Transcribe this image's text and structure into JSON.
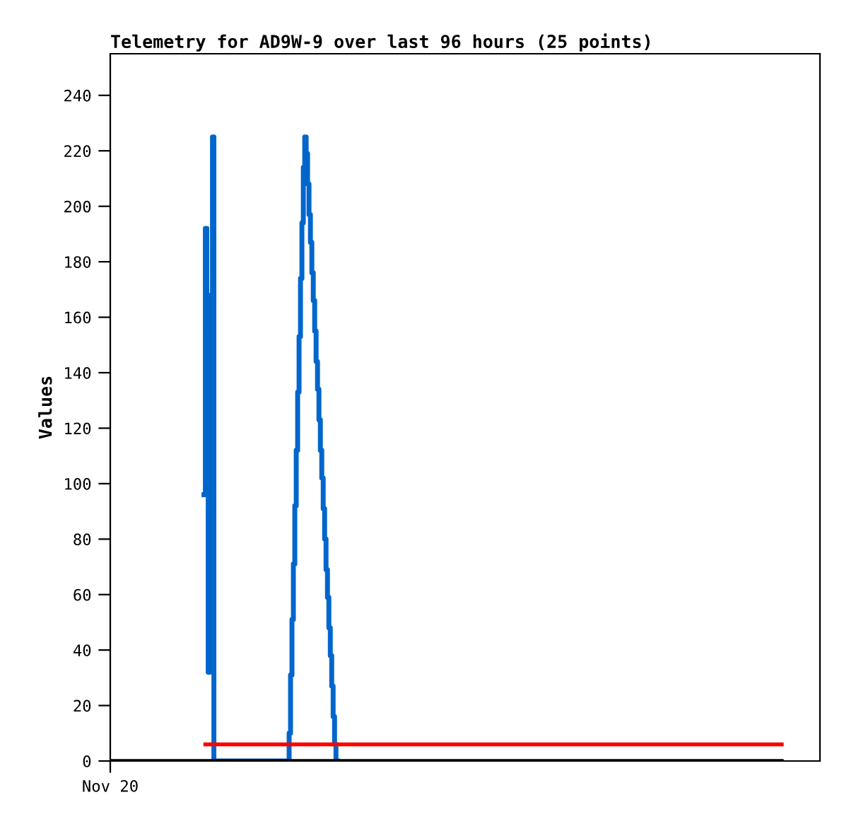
{
  "chart_data": {
    "type": "step",
    "title": "Telemetry for AD9W-9 over last 96 hours (25 points)",
    "ylabel": "Values",
    "categories": [
      "Nov 20",
      null,
      null,
      null,
      null,
      null,
      null,
      null,
      null,
      null,
      null,
      null,
      null,
      null,
      null,
      null,
      null,
      null,
      null,
      null,
      null,
      null,
      null,
      null,
      null,
      null,
      null,
      null,
      null,
      null,
      null,
      null,
      null,
      null,
      null,
      null,
      null,
      null,
      null,
      null,
      null,
      null,
      null,
      null,
      null,
      null,
      null,
      null,
      null,
      null,
      null,
      null,
      null,
      null,
      null,
      null,
      null,
      null,
      null,
      null,
      null,
      null,
      null,
      null,
      null,
      null,
      null,
      null,
      null,
      null,
      null,
      null,
      null,
      null,
      null,
      null,
      null,
      null,
      null,
      null,
      null,
      null,
      null,
      null,
      null,
      null,
      null,
      null,
      null,
      null,
      null,
      null,
      null,
      null,
      null,
      null,
      null,
      null,
      null,
      null,
      null,
      null,
      null,
      null,
      null,
      null,
      null,
      null,
      null,
      null,
      null,
      null,
      null,
      null,
      null,
      null,
      null,
      null,
      null,
      null,
      null,
      null,
      null,
      null,
      null,
      null,
      null,
      null,
      null,
      null,
      null,
      null,
      null,
      null,
      null,
      null,
      null,
      null,
      null,
      null,
      null,
      null,
      null,
      null,
      null,
      null,
      null,
      null,
      null,
      null,
      null,
      null,
      null,
      null,
      null,
      null,
      null,
      null,
      null,
      null,
      null,
      null,
      null,
      null,
      null,
      null,
      null,
      null,
      null,
      null,
      null,
      null,
      null,
      null,
      null,
      null,
      null,
      null,
      null,
      null,
      null,
      null,
      null,
      null,
      null,
      null,
      null,
      null,
      null,
      null,
      null,
      null,
      null,
      null,
      null,
      null,
      null,
      null,
      null,
      null,
      null,
      null,
      null,
      null,
      null,
      null,
      null,
      null,
      null,
      null,
      null,
      null,
      null,
      null,
      null,
      null,
      null,
      null,
      null,
      null,
      null,
      null,
      null,
      null,
      null,
      null,
      null,
      null,
      null,
      null,
      null,
      null,
      null,
      null,
      null,
      null,
      null,
      null,
      null,
      null,
      null,
      null,
      null,
      null,
      null,
      null,
      null,
      null,
      null,
      null,
      null,
      null,
      null,
      null,
      null,
      null,
      null,
      null,
      null,
      null,
      null,
      null,
      null,
      null,
      null,
      null,
      null,
      null,
      null,
      null,
      null,
      null,
      null,
      null,
      null,
      null,
      null,
      null,
      null,
      null,
      null,
      null,
      null,
      null,
      null,
      null,
      null,
      null,
      null,
      null,
      null,
      null,
      null,
      null,
      null,
      null,
      null,
      null,
      null,
      null,
      null,
      null,
      null,
      null,
      null,
      null,
      null,
      null,
      null,
      null,
      null,
      null,
      null,
      null,
      null,
      null,
      null,
      null,
      null,
      null,
      null,
      null,
      null,
      null,
      null,
      null,
      null,
      null,
      null,
      null,
      null,
      null,
      null,
      null,
      null,
      null,
      null,
      null,
      null,
      null,
      null,
      null,
      null,
      null,
      null,
      null,
      null,
      null,
      null,
      null,
      null,
      null,
      null,
      null,
      null,
      null,
      null,
      null,
      null,
      null,
      null,
      null,
      null,
      null,
      null,
      null,
      null,
      null,
      null,
      null,
      null,
      null,
      null,
      null,
      null,
      null,
      null,
      null,
      null,
      null,
      null,
      null,
      null,
      null,
      null,
      null,
      null,
      null,
      null,
      null,
      null,
      null,
      null,
      null,
      null,
      null,
      null,
      null,
      null,
      null,
      null,
      null,
      null,
      null,
      null,
      null,
      null,
      null,
      null,
      null,
      null,
      null,
      null,
      null,
      null,
      null,
      null,
      null,
      null,
      null,
      null,
      null,
      null,
      null,
      null,
      null,
      null,
      null,
      null,
      null,
      null,
      null,
      null,
      null,
      null,
      null,
      null,
      null,
      null,
      null,
      null,
      null,
      null,
      null,
      null,
      null,
      null,
      null,
      null,
      null,
      null,
      null,
      null,
      null,
      null,
      null,
      null,
      null,
      null,
      null,
      null,
      null,
      null,
      null,
      null,
      null,
      null,
      null,
      null,
      null,
      null,
      null,
      null,
      null
    ],
    "series": [
      {
        "color": "#0066cc",
        "values": [
          null,
          null,
          null,
          null,
          null,
          null,
          null,
          null,
          null,
          null,
          null,
          null,
          null,
          null,
          null,
          null,
          null,
          null,
          null,
          null,
          null,
          null,
          null,
          null,
          null,
          null,
          null,
          null,
          null,
          null,
          null,
          null,
          null,
          null,
          null,
          null,
          null,
          null,
          null,
          null,
          null,
          null,
          null,
          null,
          null,
          null,
          null,
          null,
          null,
          null,
          null,
          null,
          null,
          null,
          null,
          null,
          null,
          null,
          null,
          null,
          null,
          null,
          null,
          null,
          null,
          null,
          96,
          192,
          160,
          32,
          96,
          168,
          225,
          0,
          0,
          0,
          0,
          0,
          0,
          0,
          0,
          0,
          0,
          0,
          0,
          0,
          0,
          0,
          0,
          0,
          0,
          0,
          0,
          0,
          0,
          0,
          0,
          0,
          0,
          0,
          0,
          0,
          0,
          0,
          0,
          0,
          0,
          0,
          0,
          0,
          0,
          0,
          0,
          0,
          0,
          0,
          0,
          0,
          0,
          0,
          0,
          0,
          0,
          0,
          0,
          0,
          10,
          31,
          51,
          71,
          92,
          112,
          133,
          153,
          174,
          194,
          214,
          225,
          219,
          208,
          197,
          187,
          176,
          166,
          155,
          144,
          134,
          123,
          112,
          102,
          91,
          80,
          69,
          59,
          48,
          38,
          27,
          16,
          6,
          0,
          null,
          null,
          null,
          null,
          null,
          null,
          null,
          null,
          null,
          null,
          null,
          null,
          null,
          null,
          null,
          null,
          null,
          null,
          null,
          null,
          null,
          null,
          null,
          null,
          null,
          null,
          null,
          null,
          null,
          null,
          null,
          null,
          null,
          null,
          null,
          null,
          null,
          null,
          null,
          null,
          null,
          null,
          null,
          null,
          null,
          null,
          null,
          null,
          null,
          null,
          null,
          null,
          null,
          null,
          null,
          null,
          null,
          null,
          null,
          null,
          null,
          null,
          null,
          null,
          null,
          null,
          null,
          null,
          null,
          null,
          null,
          null,
          null,
          null,
          null,
          null,
          null,
          null,
          null,
          null,
          null,
          null,
          null,
          null,
          null,
          null,
          null,
          null,
          null,
          null,
          null,
          null,
          null,
          null,
          null,
          null,
          null,
          null,
          null,
          null,
          null,
          null,
          null,
          null,
          null,
          null,
          null,
          null,
          null,
          null,
          null,
          null,
          null,
          null,
          null,
          null,
          null,
          null,
          null,
          null,
          null,
          null,
          null,
          null,
          null,
          null,
          null,
          null,
          null,
          null,
          null,
          null,
          null,
          null,
          null,
          null,
          null,
          null,
          null,
          null,
          null,
          null,
          null,
          null,
          null,
          null,
          null,
          null,
          null,
          null,
          null,
          null,
          null,
          null,
          null,
          null,
          null,
          null,
          null,
          null,
          null,
          null,
          null,
          null,
          null,
          null,
          null,
          null,
          null,
          null,
          null,
          null,
          null,
          null,
          null,
          null,
          null,
          null,
          null,
          null,
          null,
          null,
          null,
          null,
          null,
          null,
          null,
          null,
          null,
          null,
          null,
          null,
          null,
          null,
          null,
          null,
          null,
          null,
          null,
          null,
          null,
          null,
          null,
          null,
          null,
          null,
          null,
          null,
          null,
          null,
          null,
          null,
          null,
          null,
          null,
          null,
          null,
          null,
          null,
          null,
          null,
          null,
          null,
          null,
          null,
          null,
          null,
          null,
          null,
          null,
          null,
          null,
          null,
          null,
          null,
          null,
          null,
          null,
          null,
          null,
          null,
          null,
          null,
          null,
          null,
          null,
          null,
          null,
          null,
          null,
          null,
          null,
          null,
          null,
          null,
          null,
          null,
          null,
          null,
          null,
          null,
          null,
          null,
          null,
          null,
          null,
          null,
          null,
          null,
          null,
          null,
          null,
          null,
          null,
          null,
          null,
          null,
          null,
          null,
          null,
          null,
          null,
          null,
          null,
          null,
          null,
          null,
          null,
          null,
          null,
          null,
          null,
          null,
          null,
          null,
          null,
          null,
          null,
          null,
          null,
          null,
          null,
          null,
          null,
          null,
          null,
          null,
          null,
          null,
          null,
          null,
          null,
          null,
          null
        ]
      },
      {
        "type": "line",
        "color": "#ff0000",
        "values": [
          null,
          null,
          null,
          null,
          null,
          null,
          null,
          null,
          null,
          null,
          null,
          null,
          null,
          null,
          null,
          null,
          null,
          null,
          null,
          null,
          null,
          null,
          null,
          null,
          null,
          null,
          null,
          null,
          null,
          null,
          null,
          null,
          null,
          null,
          null,
          null,
          null,
          null,
          null,
          null,
          null,
          null,
          null,
          null,
          null,
          null,
          null,
          null,
          null,
          null,
          null,
          null,
          null,
          null,
          null,
          null,
          null,
          null,
          null,
          null,
          null,
          null,
          null,
          null,
          null,
          null,
          null,
          6,
          6,
          6,
          6,
          6,
          6,
          6,
          6,
          6,
          6,
          6,
          6,
          6,
          6,
          6,
          6,
          6,
          6,
          6,
          6,
          6,
          6,
          6,
          6,
          6,
          6,
          6,
          6,
          6,
          6,
          6,
          6,
          6,
          6,
          6,
          6,
          6,
          6,
          6,
          6,
          6,
          6,
          6,
          6,
          6,
          6,
          6,
          6,
          6,
          6,
          6,
          6,
          6,
          6,
          6,
          6,
          6,
          6,
          6,
          6,
          6,
          6,
          6,
          6,
          6,
          6,
          6,
          6,
          6,
          6,
          6,
          6,
          6,
          6,
          6,
          6,
          6,
          6,
          6,
          6,
          6,
          6,
          6,
          6,
          6,
          6,
          6,
          6,
          6,
          6,
          6,
          6,
          6,
          6,
          6,
          6,
          6,
          6,
          6,
          6,
          6,
          6,
          6,
          6,
          6,
          6,
          6,
          6,
          6,
          6,
          6,
          6,
          6,
          6,
          6,
          6,
          6,
          6,
          6,
          6,
          6,
          6,
          6,
          6,
          6,
          6,
          6,
          6,
          6,
          6,
          6,
          6,
          6,
          6,
          6,
          6,
          6,
          6,
          6,
          6,
          6,
          6,
          6,
          6,
          6,
          6,
          6,
          6,
          6,
          6,
          6,
          6,
          6,
          6,
          6,
          6,
          6,
          6,
          6,
          6,
          6,
          6,
          6,
          6,
          6,
          6,
          6,
          6,
          6,
          6,
          6,
          6,
          6,
          6,
          6,
          6,
          6,
          6,
          6,
          6,
          6,
          6,
          6,
          6,
          6,
          6,
          6,
          6,
          6,
          6,
          6,
          6,
          6,
          6,
          6,
          6,
          6,
          6,
          6,
          6,
          6,
          6,
          6,
          6,
          6,
          6,
          6,
          6,
          6,
          6,
          6,
          6,
          6,
          6,
          6,
          6,
          6,
          6,
          6,
          6,
          6,
          6,
          6,
          6,
          6,
          6,
          6,
          6,
          6,
          6,
          6,
          6,
          6,
          6,
          6,
          6,
          6,
          6,
          6,
          6,
          6,
          6,
          6,
          6,
          6,
          6,
          6,
          6,
          6,
          6,
          6,
          6,
          6,
          6,
          6,
          6,
          6,
          6,
          6,
          6,
          6,
          6,
          6,
          6,
          6,
          6,
          6,
          6,
          6,
          6,
          6,
          6,
          6,
          6,
          6,
          6,
          6,
          6,
          6,
          6,
          6,
          6,
          6,
          6,
          6,
          6,
          6,
          6,
          6,
          6,
          6,
          6,
          6,
          6,
          6,
          6,
          6,
          6,
          6,
          6,
          6,
          6,
          6,
          6,
          6,
          6,
          6,
          6,
          6,
          6,
          6,
          6,
          6,
          6,
          6,
          6,
          6,
          6,
          6,
          6,
          6,
          6,
          6,
          6,
          6,
          6,
          6,
          6,
          6,
          6,
          6,
          6,
          6,
          6,
          6,
          6,
          6,
          6,
          6,
          6,
          6,
          6,
          6,
          6,
          6,
          6,
          6,
          6,
          6,
          6,
          6,
          6,
          6,
          6,
          6,
          6,
          6,
          6,
          6,
          6,
          6,
          6,
          6,
          6,
          6,
          6,
          6,
          6,
          6,
          6,
          6,
          6,
          6,
          6,
          6,
          6,
          6,
          6,
          6,
          6,
          6,
          6,
          6,
          6,
          6,
          6,
          6,
          6,
          6,
          6,
          6,
          6,
          6,
          6,
          6,
          6,
          6,
          6,
          6,
          6,
          6,
          6,
          6,
          6,
          6,
          6,
          6
        ]
      },
      {
        "type": "line",
        "color": "#000000",
        "values": [
          0,
          0,
          0,
          0,
          0,
          0,
          0,
          0,
          0,
          0,
          0,
          0,
          0,
          0,
          0,
          0,
          0,
          0,
          0,
          0,
          0,
          0,
          0,
          0,
          0,
          0,
          0,
          0,
          0,
          0,
          0,
          0,
          0,
          0,
          0,
          0,
          0,
          0,
          0,
          0,
          0,
          0,
          0,
          0,
          0,
          0,
          0,
          0,
          0,
          0,
          0,
          0,
          0,
          0,
          0,
          0,
          0,
          0,
          0,
          0,
          0,
          0,
          0,
          0,
          0,
          0,
          0,
          0,
          0,
          0,
          0,
          0,
          0,
          0,
          0,
          0,
          0,
          0,
          0,
          0,
          0,
          0,
          0,
          0,
          0,
          0,
          0,
          0,
          0,
          0,
          0,
          0,
          0,
          0,
          0,
          0,
          0,
          0,
          0,
          0,
          0,
          0,
          0,
          0,
          0,
          0,
          0,
          0,
          0,
          0,
          0,
          0,
          0,
          0,
          0,
          0,
          0,
          0,
          0,
          0,
          0,
          0,
          0,
          0,
          0,
          0,
          0,
          0,
          0,
          0,
          0,
          0,
          0,
          0,
          0,
          0,
          0,
          0,
          0,
          0,
          0,
          0,
          0,
          0,
          0,
          0,
          0,
          0,
          0,
          0,
          0,
          0,
          0,
          0,
          0,
          0,
          0,
          0,
          0,
          0,
          0,
          0,
          0,
          0,
          0,
          0,
          0,
          0,
          0,
          0,
          0,
          0,
          0,
          0,
          0,
          0,
          0,
          0,
          0,
          0,
          0,
          0,
          0,
          0,
          0,
          0,
          0,
          0,
          0,
          0,
          0,
          0,
          0,
          0,
          0,
          0,
          0,
          0,
          0,
          0,
          0,
          0,
          0,
          0,
          0,
          0,
          0,
          0,
          0,
          0,
          0,
          0,
          0,
          0,
          0,
          0,
          0,
          0,
          0,
          0,
          0,
          0,
          0,
          0,
          0,
          0,
          0,
          0,
          0,
          0,
          0,
          0,
          0,
          0,
          0,
          0,
          0,
          0,
          0,
          0,
          0,
          0,
          0,
          0,
          0,
          0,
          0,
          0,
          0,
          0,
          0,
          0,
          0,
          0,
          0,
          0,
          0,
          0,
          0,
          0,
          0,
          0,
          0,
          0,
          0,
          0,
          0,
          0,
          0,
          0,
          0,
          0,
          0,
          0,
          0,
          0,
          0,
          0,
          0,
          0,
          0,
          0,
          0,
          0,
          0,
          0,
          0,
          0,
          0,
          0,
          0,
          0,
          0,
          0,
          0,
          0,
          0,
          0,
          0,
          0,
          0,
          0,
          0,
          0,
          0,
          0,
          0,
          0,
          0,
          0,
          0,
          0,
          0,
          0,
          0,
          0,
          0,
          0,
          0,
          0,
          0,
          0,
          0,
          0,
          0,
          0,
          0,
          0,
          0,
          0,
          0,
          0,
          0,
          0,
          0,
          0,
          0,
          0,
          0,
          0,
          0,
          0,
          0,
          0,
          0,
          0,
          0,
          0,
          0,
          0,
          0,
          0,
          0,
          0,
          0,
          0,
          0,
          0,
          0,
          0,
          0,
          0,
          0,
          0,
          0,
          0,
          0,
          0,
          0,
          0,
          0,
          0,
          0,
          0,
          0,
          0,
          0,
          0,
          0,
          0,
          0,
          0,
          0,
          0,
          0,
          0,
          0,
          0,
          0,
          0,
          0,
          0,
          0,
          0,
          0,
          0,
          0,
          0,
          0,
          0,
          0,
          0,
          0,
          0,
          0,
          0,
          0,
          0,
          0,
          0,
          0,
          0,
          0,
          0,
          0,
          0,
          0,
          0,
          0,
          0,
          0,
          0,
          0,
          0,
          0,
          0,
          0,
          0,
          0,
          0,
          0,
          0,
          0,
          0,
          0,
          0,
          0,
          0,
          0,
          0,
          0,
          0,
          0,
          0,
          0,
          0,
          0,
          0,
          0,
          0,
          0,
          0,
          0,
          0,
          0,
          0,
          0,
          0,
          0,
          0,
          0,
          0,
          0,
          0,
          0,
          0,
          0,
          0,
          0,
          0,
          0,
          0,
          0,
          0
        ]
      }
    ],
    "ylim": [
      0,
      255
    ],
    "yticks": [
      0,
      20,
      40,
      60,
      80,
      100,
      120,
      140,
      160,
      180,
      200,
      220,
      240
    ],
    "grid": false
  }
}
